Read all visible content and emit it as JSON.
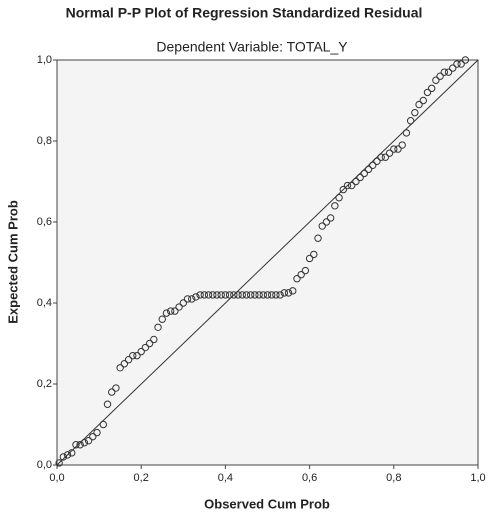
{
  "chart_data": {
    "type": "scatter",
    "title": "Normal P-P Plot of Regression Standardized Residual",
    "subtitle": "Dependent Variable: TOTAL_Y",
    "x_label": "Observed Cum Prob",
    "y_label": "Expected Cum Prob",
    "xlim": [
      0,
      1
    ],
    "ylim": [
      0,
      1
    ],
    "xticks": [
      {
        "value": 0,
        "label": "0,0"
      },
      {
        "value": 0.2,
        "label": "0,2"
      },
      {
        "value": 0.4,
        "label": "0,4"
      },
      {
        "value": 0.6,
        "label": "0,6"
      },
      {
        "value": 0.8,
        "label": "0,8"
      },
      {
        "value": 1,
        "label": "1,0"
      }
    ],
    "yticks": [
      {
        "value": 0,
        "label": "0,0"
      },
      {
        "value": 0.2,
        "label": "0,2"
      },
      {
        "value": 0.4,
        "label": "0,4"
      },
      {
        "value": 0.6,
        "label": "0,6"
      },
      {
        "value": 0.8,
        "label": "0,8"
      },
      {
        "value": 1,
        "label": "1,0"
      }
    ],
    "color": "#333333",
    "x": [
      0.005,
      0.015,
      0.025,
      0.035,
      0.045,
      0.055,
      0.065,
      0.075,
      0.085,
      0.095,
      0.11,
      0.12,
      0.13,
      0.14,
      0.15,
      0.16,
      0.17,
      0.18,
      0.19,
      0.2,
      0.21,
      0.22,
      0.23,
      0.24,
      0.25,
      0.26,
      0.27,
      0.28,
      0.29,
      0.3,
      0.31,
      0.32,
      0.33,
      0.34,
      0.35,
      0.36,
      0.37,
      0.38,
      0.39,
      0.4,
      0.41,
      0.42,
      0.43,
      0.44,
      0.45,
      0.46,
      0.47,
      0.48,
      0.49,
      0.5,
      0.51,
      0.52,
      0.53,
      0.54,
      0.55,
      0.56,
      0.57,
      0.58,
      0.59,
      0.6,
      0.61,
      0.62,
      0.63,
      0.64,
      0.65,
      0.66,
      0.67,
      0.68,
      0.69,
      0.7,
      0.71,
      0.72,
      0.73,
      0.74,
      0.75,
      0.76,
      0.77,
      0.78,
      0.79,
      0.8,
      0.81,
      0.82,
      0.83,
      0.84,
      0.85,
      0.86,
      0.87,
      0.88,
      0.89,
      0.9,
      0.91,
      0.92,
      0.93,
      0.94,
      0.95,
      0.96,
      0.97
    ],
    "y": [
      0.005,
      0.02,
      0.025,
      0.03,
      0.05,
      0.05,
      0.055,
      0.06,
      0.07,
      0.08,
      0.1,
      0.15,
      0.18,
      0.19,
      0.24,
      0.25,
      0.26,
      0.27,
      0.27,
      0.28,
      0.29,
      0.3,
      0.31,
      0.34,
      0.36,
      0.375,
      0.38,
      0.38,
      0.39,
      0.4,
      0.41,
      0.41,
      0.415,
      0.42,
      0.42,
      0.42,
      0.42,
      0.42,
      0.42,
      0.42,
      0.42,
      0.42,
      0.42,
      0.42,
      0.42,
      0.42,
      0.42,
      0.42,
      0.42,
      0.42,
      0.42,
      0.42,
      0.42,
      0.425,
      0.425,
      0.43,
      0.46,
      0.47,
      0.48,
      0.51,
      0.52,
      0.56,
      0.59,
      0.6,
      0.61,
      0.64,
      0.66,
      0.68,
      0.69,
      0.69,
      0.7,
      0.71,
      0.72,
      0.73,
      0.74,
      0.75,
      0.76,
      0.76,
      0.77,
      0.78,
      0.78,
      0.79,
      0.82,
      0.85,
      0.87,
      0.89,
      0.9,
      0.92,
      0.93,
      0.95,
      0.96,
      0.97,
      0.97,
      0.98,
      0.99,
      0.99,
      1.0
    ]
  }
}
